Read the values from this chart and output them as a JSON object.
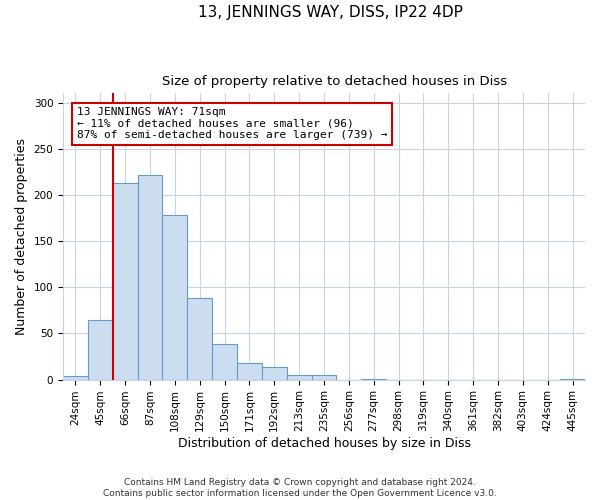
{
  "title": "13, JENNINGS WAY, DISS, IP22 4DP",
  "subtitle": "Size of property relative to detached houses in Diss",
  "xlabel": "Distribution of detached houses by size in Diss",
  "ylabel": "Number of detached properties",
  "bar_labels": [
    "24sqm",
    "45sqm",
    "66sqm",
    "87sqm",
    "108sqm",
    "129sqm",
    "150sqm",
    "171sqm",
    "192sqm",
    "213sqm",
    "235sqm",
    "256sqm",
    "277sqm",
    "298sqm",
    "319sqm",
    "340sqm",
    "361sqm",
    "382sqm",
    "403sqm",
    "424sqm",
    "445sqm"
  ],
  "bar_values": [
    4,
    65,
    213,
    222,
    178,
    88,
    39,
    18,
    14,
    5,
    5,
    0,
    1,
    0,
    0,
    0,
    0,
    0,
    0,
    0,
    1
  ],
  "bar_color": "#ccddef",
  "bar_edge_color": "#6699cc",
  "vline_color": "#cc0000",
  "box_text_line1": "13 JENNINGS WAY: 71sqm",
  "box_text_line2": "← 11% of detached houses are smaller (96)",
  "box_text_line3": "87% of semi-detached houses are larger (739) →",
  "ylim": [
    0,
    310
  ],
  "footer_line1": "Contains HM Land Registry data © Crown copyright and database right 2024.",
  "footer_line2": "Contains public sector information licensed under the Open Government Licence v3.0.",
  "background_color": "#ffffff",
  "grid_color": "#c8d4e4",
  "title_fontsize": 11,
  "subtitle_fontsize": 9.5,
  "axis_label_fontsize": 9,
  "tick_fontsize": 7.5,
  "footer_fontsize": 6.5,
  "annotation_fontsize": 8
}
